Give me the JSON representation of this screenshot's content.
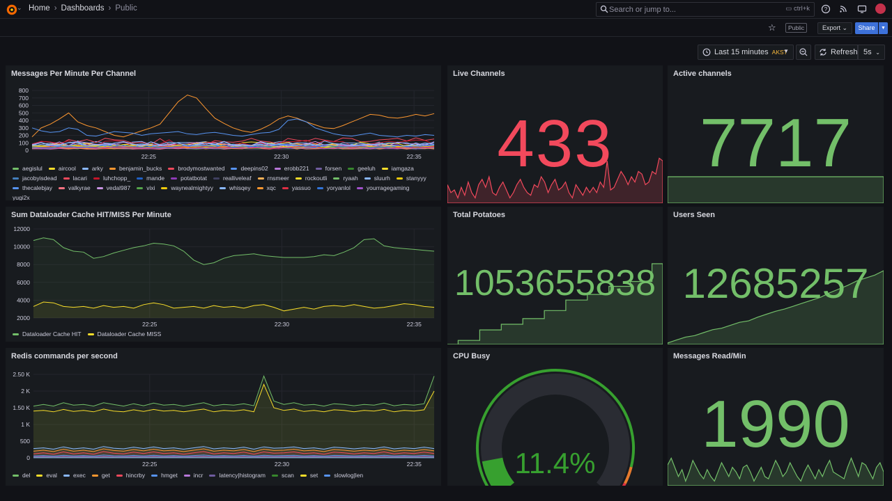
{
  "breadcrumbs": {
    "home": "Home",
    "dashboards": "Dashboards",
    "current": "Public"
  },
  "search": {
    "placeholder": "Search or jump to...",
    "shortcut": "ctrl+k"
  },
  "toolbar": {
    "public_badge": "Public",
    "export_label": "Export",
    "share_label": "Share"
  },
  "time": {
    "range": "Last 15 minutes",
    "tz": "AKST",
    "refresh_label": "Refresh",
    "interval": "5s"
  },
  "colors": {
    "green": "#73bf69",
    "red": "#f2495c",
    "yellow": "#fade2a",
    "orange": "#ff9830",
    "blue": "#5794f2",
    "purple": "#b877d9"
  },
  "panels": {
    "messages": {
      "title": "Messages Per Minute Per Channel"
    },
    "dataloader": {
      "title": "Sum Dataloader Cache HIT/MISS Per Minute"
    },
    "redis": {
      "title": "Redis commands per second"
    },
    "live": {
      "title": "Live Channels",
      "value": "433"
    },
    "active": {
      "title": "Active channels",
      "value": "7717"
    },
    "potatoes": {
      "title": "Total Potatoes",
      "value": "1053655838"
    },
    "users": {
      "title": "Users Seen",
      "value": "12685257"
    },
    "cpu": {
      "title": "CPU Busy",
      "value": "11.4%"
    },
    "reads": {
      "title": "Messages Read/Min",
      "value": "1990"
    }
  },
  "chart_data": [
    {
      "type": "line",
      "title": "Messages Per Minute Per Channel",
      "x_ticks": [
        "22:25",
        "22:30",
        "22:35"
      ],
      "y_ticks": [
        "0",
        "100",
        "200",
        "300",
        "400",
        "500",
        "600",
        "700",
        "800"
      ],
      "ylim": [
        0,
        800
      ],
      "series": [
        {
          "name": "aegislul",
          "color": "#73bf69"
        },
        {
          "name": "aircool",
          "color": "#fade2a"
        },
        {
          "name": "arky",
          "color": "#8ab8ff"
        },
        {
          "name": "benjamin_bucks",
          "color": "#ff9830"
        },
        {
          "name": "brodymostwanted",
          "color": "#f2495c"
        },
        {
          "name": "deepins02",
          "color": "#5794f2"
        },
        {
          "name": "erobb221",
          "color": "#b877d9"
        },
        {
          "name": "forsen",
          "color": "#705da0"
        },
        {
          "name": "geeluh",
          "color": "#37872d"
        },
        {
          "name": "iamgaza",
          "color": "#fade2a"
        },
        {
          "name": "jacobyisdead",
          "color": "#447ebc"
        },
        {
          "name": "lacari",
          "color": "#f2495c"
        },
        {
          "name": "luhchopp_",
          "color": "#c4162a"
        },
        {
          "name": "mande",
          "color": "#1f60c4"
        },
        {
          "name": "potatbotat",
          "color": "#8f3bb8"
        },
        {
          "name": "realliveleaf",
          "color": "#3f3f5f"
        },
        {
          "name": "rnsmeer",
          "color": "#ffb357"
        },
        {
          "name": "rockoutli",
          "color": "#fade2a"
        },
        {
          "name": "ryaah",
          "color": "#73bf69"
        },
        {
          "name": "sluurh",
          "color": "#8ab8ff"
        },
        {
          "name": "stanyyy",
          "color": "#f2cc0c"
        },
        {
          "name": "thecalebjay",
          "color": "#5794f2"
        },
        {
          "name": "valkyrae",
          "color": "#ff7383"
        },
        {
          "name": "vedal987",
          "color": "#ca95e5"
        },
        {
          "name": "vixi",
          "color": "#56a64b"
        },
        {
          "name": "waynealmightyy",
          "color": "#f2cc0c"
        },
        {
          "name": "whisqey",
          "color": "#8ab8ff"
        },
        {
          "name": "xqc",
          "color": "#ff9830"
        },
        {
          "name": "yassuo",
          "color": "#e02f44"
        },
        {
          "name": "yoryanlol",
          "color": "#3274d9"
        },
        {
          "name": "yourragegaming",
          "color": "#a352cc"
        }
      ],
      "overflow_name": "yugi2x"
    },
    {
      "type": "line",
      "title": "Sum Dataloader Cache HIT/MISS Per Minute",
      "x_ticks": [
        "22:25",
        "22:30",
        "22:35"
      ],
      "y_ticks": [
        "2000",
        "4000",
        "6000",
        "8000",
        "10000",
        "12000"
      ],
      "ylim": [
        2000,
        12000
      ],
      "series": [
        {
          "name": "Dataloader Cache HIT",
          "color": "#73bf69",
          "values": [
            10700,
            11000,
            10800,
            9900,
            9500,
            9400,
            8700,
            8900,
            9300,
            9600,
            9900,
            10100,
            10400,
            10300,
            10100,
            9500,
            8500,
            8000,
            8200,
            8700,
            9000,
            9100,
            9200,
            9000,
            8900,
            8800,
            8800,
            8800,
            8900,
            9100,
            9000,
            9400,
            9900,
            10800,
            10900,
            10100,
            9900,
            9800,
            9700,
            9600,
            9500
          ]
        },
        {
          "name": "Dataloader Cache MISS",
          "color": "#fade2a",
          "values": [
            3300,
            3800,
            3700,
            3300,
            3200,
            3300,
            3100,
            3400,
            3200,
            3300,
            3100,
            3500,
            3700,
            3500,
            3100,
            3200,
            3300,
            3100,
            3400,
            3200,
            3300,
            3100,
            3400,
            3500,
            3200,
            2800,
            3000,
            3200,
            3000,
            3300,
            3400,
            3300,
            3500,
            3300,
            3100,
            3200,
            3400,
            3600,
            3500,
            3300,
            3200
          ]
        }
      ]
    },
    {
      "type": "line",
      "title": "Redis commands per second",
      "x_ticks": [
        "22:25",
        "22:30",
        "22:35"
      ],
      "y_ticks": [
        "0",
        "500",
        "1 K",
        "1.50 K",
        "2 K",
        "2.50 K"
      ],
      "ylim": [
        0,
        2500
      ],
      "series": [
        {
          "name": "del",
          "color": "#73bf69",
          "values": [
            1550,
            1600,
            1550,
            1650,
            1580,
            1600,
            1550,
            1650,
            1600,
            1550,
            1620,
            1560,
            1640,
            1580,
            1600,
            1550,
            1600,
            1650,
            1560,
            1600,
            1580,
            1620,
            1560,
            2450,
            1700,
            1600,
            1650,
            1580,
            1600,
            1550,
            1620,
            1600,
            1560,
            1600,
            1580,
            1640,
            1560,
            1600,
            1580,
            1620,
            2450
          ]
        },
        {
          "name": "eval",
          "color": "#fade2a",
          "values": [
            1400,
            1420,
            1380,
            1450,
            1390,
            1420,
            1380,
            1460,
            1400,
            1380,
            1440,
            1390,
            1450,
            1400,
            1420,
            1380,
            1420,
            1460,
            1380,
            1420,
            1400,
            1440,
            1380,
            2200,
            1500,
            1420,
            1460,
            1390,
            1420,
            1380,
            1440,
            1420,
            1380,
            1420,
            1400,
            1450,
            1380,
            1420,
            1400,
            1440,
            2000
          ]
        },
        {
          "name": "exec",
          "color": "#8ab8ff",
          "values": [
            280,
            300,
            260,
            330,
            270,
            300,
            260,
            340,
            290,
            270,
            320,
            280,
            330,
            280,
            300,
            260,
            300,
            340,
            270,
            300,
            280,
            320,
            260,
            330,
            290,
            300,
            330,
            280,
            300,
            260,
            320,
            300,
            270,
            300,
            280,
            330,
            270,
            300,
            280,
            320,
            280
          ]
        },
        {
          "name": "get",
          "color": "#ff9830",
          "values": [
            200,
            230,
            190,
            260,
            200,
            230,
            190,
            270,
            220,
            200,
            250,
            210,
            260,
            210,
            230,
            190,
            230,
            270,
            200,
            230,
            210,
            250,
            190,
            260,
            220,
            230,
            260,
            210,
            230,
            190,
            250,
            230,
            200,
            230,
            210,
            260,
            200,
            230,
            210,
            250,
            210
          ]
        },
        {
          "name": "hincrby",
          "color": "#f2495c",
          "values": [
            120,
            150,
            110,
            180,
            120,
            150,
            110,
            190,
            140,
            120,
            170,
            130,
            180,
            130,
            150,
            110,
            150,
            190,
            120,
            150,
            130,
            170,
            110,
            180,
            140,
            150,
            180,
            130,
            150,
            110,
            170,
            150,
            120,
            150,
            130,
            180,
            120,
            150,
            130,
            170,
            130
          ]
        },
        {
          "name": "hmget",
          "color": "#5794f2",
          "values": [
            60,
            70,
            55,
            80,
            60,
            70,
            55,
            85,
            65,
            60,
            75,
            60,
            80,
            60,
            70,
            55,
            70,
            85,
            60,
            70,
            60,
            75,
            55,
            80,
            65,
            70,
            80,
            60,
            70,
            55,
            75,
            70,
            60,
            70,
            60,
            80,
            60,
            70,
            60,
            75,
            60
          ]
        },
        {
          "name": "incr",
          "color": "#b877d9",
          "values": [
            30,
            35,
            28,
            40,
            30,
            35,
            28,
            42,
            32,
            30,
            38,
            30,
            40,
            30,
            35,
            28,
            35,
            42,
            30,
            35,
            30,
            38,
            28,
            40,
            32,
            35,
            40,
            30,
            35,
            28,
            38,
            35,
            30,
            35,
            30,
            40,
            30,
            35,
            30,
            38,
            30
          ]
        },
        {
          "name": "latency|histogram",
          "color": "#705da0",
          "values": [
            15,
            15,
            15,
            15,
            15,
            15,
            15,
            15,
            15,
            15,
            15,
            15,
            15,
            15,
            15,
            15,
            15,
            15,
            15,
            15,
            15,
            15,
            15,
            15,
            15,
            15,
            15,
            15,
            15,
            15,
            15,
            15,
            15,
            15,
            15,
            15,
            15,
            15,
            15,
            15,
            15
          ]
        },
        {
          "name": "scan",
          "color": "#37872d",
          "values": [
            8,
            8,
            8,
            8,
            8,
            8,
            8,
            8,
            8,
            8,
            8,
            8,
            8,
            8,
            8,
            8,
            8,
            8,
            8,
            8,
            8,
            8,
            8,
            8,
            8,
            8,
            8,
            8,
            8,
            8,
            8,
            8,
            8,
            8,
            8,
            8,
            8,
            8,
            8,
            8,
            8
          ]
        },
        {
          "name": "set",
          "color": "#fade2a",
          "values": [
            5,
            5,
            5,
            5,
            5,
            5,
            5,
            5,
            5,
            5,
            5,
            5,
            5,
            5,
            5,
            5,
            5,
            5,
            5,
            5,
            5,
            5,
            5,
            5,
            5,
            5,
            5,
            5,
            5,
            5,
            5,
            5,
            5,
            5,
            5,
            5,
            5,
            5,
            5,
            5,
            5
          ]
        },
        {
          "name": "slowlog|len",
          "color": "#5794f2",
          "values": [
            2,
            2,
            2,
            2,
            2,
            2,
            2,
            2,
            2,
            2,
            2,
            2,
            2,
            2,
            2,
            2,
            2,
            2,
            2,
            2,
            2,
            2,
            2,
            2,
            2,
            2,
            2,
            2,
            2,
            2,
            2,
            2,
            2,
            2,
            2,
            2,
            2,
            2,
            2,
            2,
            2
          ]
        }
      ]
    },
    {
      "type": "area",
      "title": "Live Channels",
      "color": "#f2495c",
      "values": [
        0.35,
        0.2,
        0.25,
        0.1,
        0.3,
        0.15,
        0.4,
        0.2,
        0.1,
        0.35,
        0.45,
        0.3,
        0.5,
        0.2,
        0.15,
        0.3,
        0.4,
        0.25,
        0.1,
        0.2,
        0.35,
        0.45,
        0.3,
        0.2,
        0.15,
        0.35,
        0.3,
        0.5,
        0.4,
        0.2,
        0.35,
        0.45,
        0.25,
        0.3,
        0.4,
        0.2,
        0.1,
        0.35,
        0.25,
        0.15,
        0.3,
        0.2,
        0.3,
        0.2,
        0.4,
        0.3,
        0.8,
        0.25,
        0.3,
        0.45,
        0.6,
        0.5,
        0.35,
        0.5,
        0.4,
        0.6,
        0.55,
        0.35,
        0.4,
        0.6,
        0.55,
        0.85,
        0.8
      ]
    },
    {
      "type": "area",
      "title": "Active channels",
      "color": "#73bf69",
      "values": [
        0.5,
        0.5,
        0.5,
        0.5,
        0.5,
        0.5,
        0.5,
        0.5,
        0.5,
        0.5
      ]
    },
    {
      "type": "area",
      "title": "Total Potatoes",
      "color": "#73bf69",
      "values": [
        0.0,
        0.05,
        0.05,
        0.18,
        0.18,
        0.25,
        0.25,
        0.32,
        0.32,
        0.42,
        0.42,
        0.55,
        0.55,
        0.62,
        0.62,
        0.72,
        0.72,
        0.78,
        0.78,
        1.0,
        1.0
      ]
    },
    {
      "type": "area",
      "title": "Users Seen",
      "color": "#73bf69",
      "values": [
        0.02,
        0.06,
        0.1,
        0.12,
        0.16,
        0.2,
        0.22,
        0.26,
        0.3,
        0.32,
        0.37,
        0.41,
        0.45,
        0.48,
        0.52,
        0.56,
        0.6,
        0.64,
        0.7,
        0.75,
        0.8,
        0.86,
        0.9,
        0.94,
        1.0
      ]
    },
    {
      "type": "gauge",
      "title": "CPU Busy",
      "value": 11.4,
      "unit": "%",
      "min": 0,
      "max": 100
    },
    {
      "type": "area",
      "title": "Messages Read/Min",
      "color": "#73bf69",
      "values": [
        0.45,
        0.6,
        0.4,
        0.2,
        0.35,
        0.1,
        0.3,
        0.55,
        0.4,
        0.25,
        0.15,
        0.35,
        0.2,
        0.1,
        0.3,
        0.5,
        0.35,
        0.2,
        0.4,
        0.3,
        0.15,
        0.4,
        0.45,
        0.3,
        0.1,
        0.25,
        0.4,
        0.2,
        0.15,
        0.35,
        0.55,
        0.4,
        0.2,
        0.3,
        0.5,
        0.35,
        0.2,
        0.1,
        0.3,
        0.45,
        0.3,
        0.15,
        0.35,
        0.2,
        0.4,
        0.55,
        0.3,
        0.25,
        0.2,
        0.15,
        0.4,
        0.6,
        0.4,
        0.2,
        0.5,
        0.45,
        0.3,
        0.15,
        0.4,
        0.5,
        0.3
      ]
    }
  ]
}
